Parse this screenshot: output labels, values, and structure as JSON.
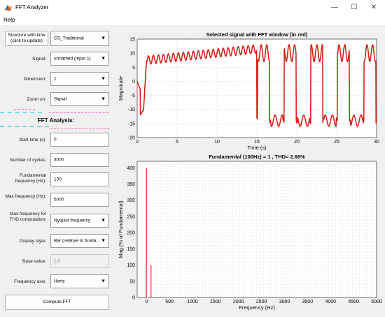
{
  "window": {
    "title": "FFT Analyzer",
    "minimize": "—",
    "maximize": "☐",
    "close": "✕"
  },
  "menu": {
    "help": "Help"
  },
  "controls": {
    "structure_button": "Structure with time (click to update)",
    "structure_value": "CS_Traditional",
    "signal_label": "Signal:",
    "signal_value": "unnamed (input 1)",
    "dimension_label": "Dimension:",
    "dimension_value": "1",
    "zoom_label": "Zoom on:",
    "zoom_value": "Signal",
    "fft_heading": "FFT Analysis:",
    "start_time_label": "Start time (s):",
    "start_time_value": "0",
    "cycles_label": "Number of cycles:",
    "cycles_value": "3000",
    "fund_freq_label": "Fundamental frequency (Hz):",
    "fund_freq_value": "100",
    "max_freq_label": "Max frequency (Hz):",
    "max_freq_value": "5000",
    "max_thd_label": "Max frequency for THD computation:",
    "max_thd_value": "Nyquist frequency",
    "display_style_label": "Display style:",
    "display_style_value": "Bar (relative to funda...",
    "base_value_label": "Base value:",
    "base_value_value": "1.0",
    "freq_axis_label": "Frequency axis:",
    "freq_axis_value": "Hertz",
    "compute_button": "Compute FFT",
    "arrow": "▼"
  },
  "colors": {
    "signal": "#c0392b",
    "fft_window": "#ff0000",
    "bar": "#d62728",
    "grid": "#b0b0b0"
  },
  "chart_data": [
    {
      "type": "line",
      "title": "Selected signal with FFT window (in red)",
      "xlabel": "Time (s)",
      "ylabel": "Magnitude",
      "xlim": [
        0,
        30
      ],
      "ylim": [
        -20,
        15
      ],
      "xticks": [
        0,
        5,
        10,
        15,
        20,
        25,
        30
      ],
      "yticks": [
        -20,
        -15,
        -10,
        -5,
        0,
        5,
        10,
        15
      ],
      "grid": true,
      "description_points": {
        "x": [
          0,
          0.5,
          1,
          2,
          5,
          10,
          14,
          15.5,
          16,
          17,
          18,
          19,
          20,
          21,
          22,
          23,
          24,
          25,
          26,
          27,
          28,
          29,
          30
        ],
        "y": [
          0,
          -12,
          9,
          9.5,
          10,
          11.5,
          12.5,
          14,
          -15,
          8,
          -10,
          11,
          -15,
          9,
          -14,
          10,
          -15,
          11,
          -16,
          12,
          -17,
          13,
          -16
        ]
      }
    },
    {
      "type": "bar",
      "title": "Fundamental (100Hz) = 1 , THD= 2.66%",
      "xlabel": "Frequency (Hz)",
      "ylabel": "Mag (% of Fundamental)",
      "xlim": [
        -200,
        5000
      ],
      "ylim": [
        0,
        420
      ],
      "xticks": [
        0,
        500,
        1000,
        1500,
        2000,
        2500,
        3000,
        3500,
        4000,
        4500,
        5000
      ],
      "yticks": [
        0,
        50,
        100,
        150,
        200,
        250,
        300,
        350,
        400
      ],
      "grid": true,
      "x": [
        0,
        100
      ],
      "values": [
        400,
        100
      ]
    }
  ]
}
